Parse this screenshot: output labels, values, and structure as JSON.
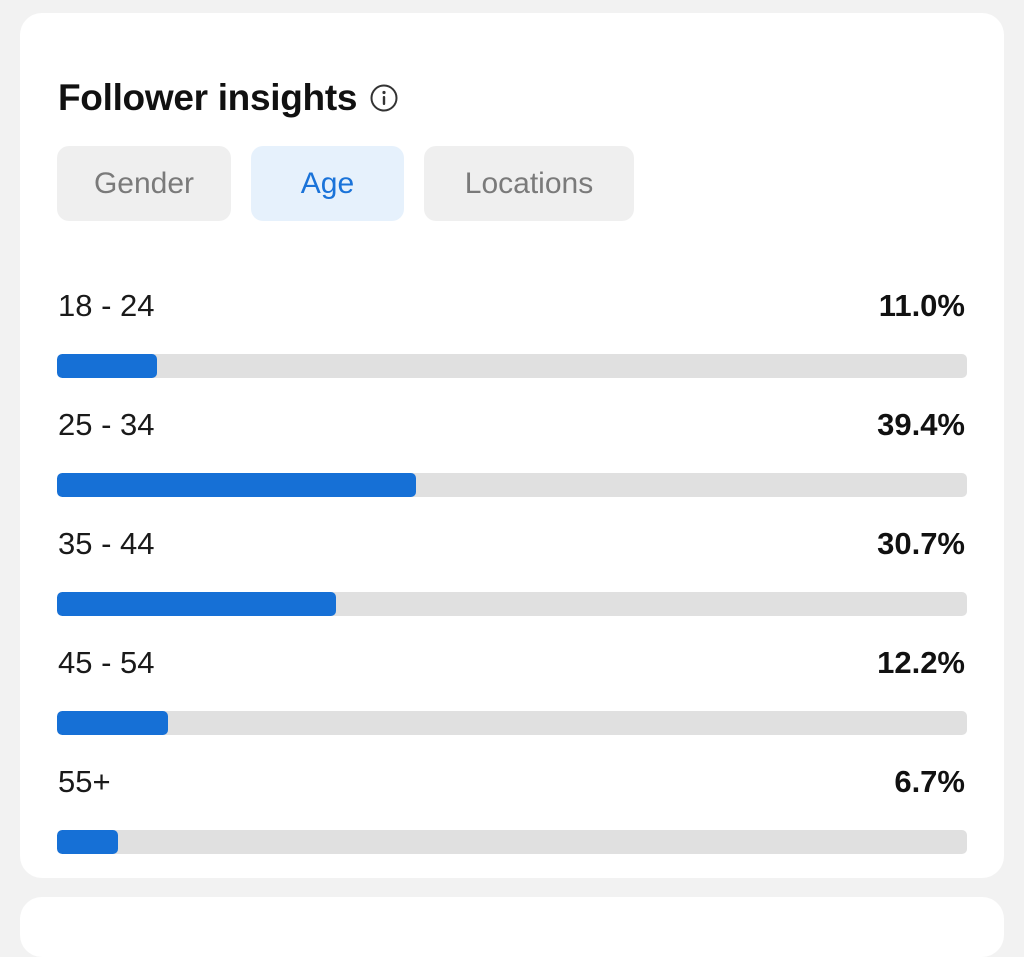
{
  "card": {
    "title": "Follower insights",
    "info_icon": "info-circle-icon"
  },
  "tabs": [
    {
      "label": "Gender",
      "active": false
    },
    {
      "label": "Age",
      "active": true
    },
    {
      "label": "Locations",
      "active": false
    }
  ],
  "age_breakdown": [
    {
      "label": "18 - 24",
      "value_text": "11.0%",
      "fill_percent": 11.0
    },
    {
      "label": "25 - 34",
      "value_text": "39.4%",
      "fill_percent": 39.4
    },
    {
      "label": "35 - 44",
      "value_text": "30.7%",
      "fill_percent": 30.7
    },
    {
      "label": "45 - 54",
      "value_text": "12.2%",
      "fill_percent": 12.2
    },
    {
      "label": "55+",
      "value_text": "6.7%",
      "fill_percent": 6.7
    }
  ],
  "colors": {
    "accent": "#1670d6",
    "active_tab_bg": "#e6f1fc",
    "track": "#e0e0e0"
  }
}
